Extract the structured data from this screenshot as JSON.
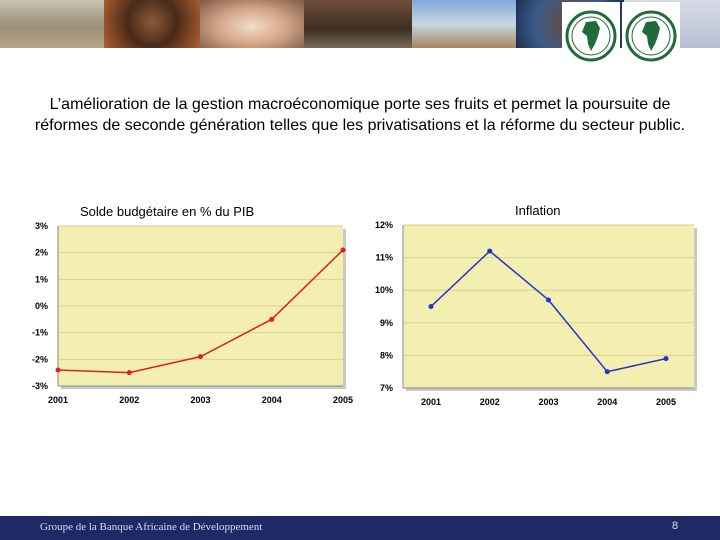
{
  "slide": {
    "headline": "L’amélioration de la gestion macroéconomique porte ses fruits et permet la poursuite de réformes de seconde génération telles que les privatisations et la réforme du secteur public.",
    "footer_text": "Groupe de la Banque Africaine de Développement",
    "page_number": "8"
  },
  "colors": {
    "plot_background": "#f2efb1",
    "budget_series": "#e0201e",
    "inflation_series": "#2233cc",
    "footer": "#1d2a66"
  },
  "icons": [
    "afdb-logo-icon",
    "afdb-logo-icon"
  ],
  "chart_data": [
    {
      "type": "line",
      "title": "Solde budgétaire en % du PIB",
      "x": [
        "2001",
        "2002",
        "2003",
        "2004",
        "2005"
      ],
      "series": [
        {
          "values": [
            -2.4,
            -2.5,
            -1.9,
            -0.5,
            2.1
          ]
        }
      ],
      "ylim": [
        -3,
        3
      ],
      "yticks": [
        3,
        2,
        1,
        0,
        -1,
        -2,
        -3
      ],
      "ytick_labels": [
        "3%",
        "2%",
        "1%",
        "0%",
        "-1%",
        "-2%",
        "-3%"
      ],
      "grid": true,
      "legend": "none"
    },
    {
      "type": "line",
      "title": "Inflation",
      "x": [
        "2001",
        "2002",
        "2003",
        "2004",
        "2005"
      ],
      "series": [
        {
          "values": [
            9.5,
            11.2,
            9.7,
            7.5,
            7.9
          ]
        }
      ],
      "ylim": [
        7,
        12
      ],
      "yticks": [
        12,
        11,
        10,
        9,
        8,
        7
      ],
      "ytick_labels": [
        "12%",
        "11%",
        "10%",
        "9%",
        "8%",
        "7%"
      ],
      "grid": true,
      "legend": "none"
    }
  ]
}
